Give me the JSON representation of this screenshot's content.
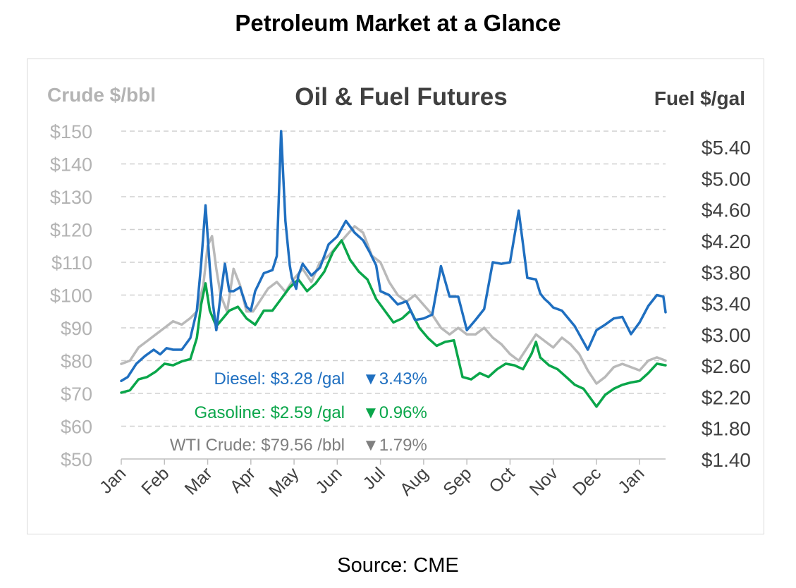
{
  "page": {
    "title": "Petroleum Market at a Glance",
    "source": "Source: CME"
  },
  "chart_data": {
    "type": "line",
    "title": "Oil & Fuel Futures",
    "left_axis_label": "Crude $/bbl",
    "right_axis_label": "Fuel $/gal",
    "left_ticks": [
      "$150",
      "$140",
      "$130",
      "$120",
      "$110",
      "$100",
      "$90",
      "$80",
      "$70",
      "$60",
      "$50"
    ],
    "right_ticks": [
      "$5.40",
      "$5.00",
      "$4.60",
      "$4.20",
      "$3.80",
      "$3.40",
      "$3.00",
      "$2.60",
      "$2.20",
      "$1.80",
      "$1.40"
    ],
    "left_ylim": [
      50,
      150
    ],
    "right_ylim": [
      1.4,
      5.6
    ],
    "xlim": [
      0,
      12.6
    ],
    "categories": [
      "Jan",
      "Feb",
      "Mar",
      "Apr",
      "May",
      "Jun",
      "Jul",
      "Aug",
      "Sep",
      "Oct",
      "Nov",
      "Dec",
      "Jan"
    ],
    "grid": "horizontal dashed",
    "colors": {
      "diesel": "#1f6fc0",
      "gasoline": "#0aa64a",
      "crude": "#b9b9b9"
    },
    "annotations": [
      {
        "name": "Diesel:",
        "price": "$3.28 /gal",
        "change": "3.43%",
        "arrow": "▼",
        "color": "#1f6fc0"
      },
      {
        "name": "Gasoline:",
        "price": "$2.59 /gal",
        "change": "0.96%",
        "arrow": "▼",
        "color": "#0aa64a"
      },
      {
        "name": "WTI Crude:",
        "price": "$79.56 /bbl",
        "change": "1.79%",
        "arrow": "▼",
        "color": "#7f7f7f"
      }
    ],
    "series": [
      {
        "name": "Diesel",
        "axis": "right",
        "color": "#1f6fc0",
        "x": [
          0.0,
          0.15,
          0.35,
          0.55,
          0.75,
          0.9,
          1.05,
          1.2,
          1.4,
          1.6,
          1.75,
          1.85,
          1.95,
          2.05,
          2.12,
          2.2,
          2.3,
          2.4,
          2.5,
          2.6,
          2.75,
          2.9,
          3.0,
          3.1,
          3.3,
          3.5,
          3.6,
          3.7,
          3.8,
          3.9,
          3.95,
          4.0,
          4.05,
          4.1,
          4.2,
          4.4,
          4.6,
          4.8,
          5.0,
          5.2,
          5.4,
          5.6,
          5.75,
          5.9,
          6.0,
          6.2,
          6.4,
          6.6,
          6.8,
          7.0,
          7.2,
          7.4,
          7.6,
          7.8,
          8.0,
          8.2,
          8.4,
          8.6,
          8.8,
          9.0,
          9.2,
          9.4,
          9.6,
          9.7,
          9.8,
          9.9,
          10.0,
          10.2,
          10.5,
          10.8,
          11.0,
          11.2,
          11.4,
          11.6,
          11.8,
          12.0,
          12.2,
          12.4,
          12.55,
          12.6
        ],
        "values": [
          2.4,
          2.45,
          2.62,
          2.72,
          2.8,
          2.74,
          2.82,
          2.8,
          2.8,
          2.95,
          3.3,
          3.9,
          4.65,
          3.85,
          3.4,
          3.05,
          3.5,
          3.9,
          3.55,
          3.55,
          3.6,
          3.35,
          3.3,
          3.55,
          3.78,
          3.82,
          4.0,
          5.6,
          4.45,
          3.88,
          3.72,
          3.65,
          3.58,
          3.75,
          3.9,
          3.75,
          3.85,
          4.15,
          4.25,
          4.45,
          4.3,
          4.2,
          4.05,
          3.88,
          3.55,
          3.5,
          3.38,
          3.42,
          3.18,
          3.2,
          3.25,
          3.87,
          3.48,
          3.48,
          3.05,
          3.18,
          3.32,
          3.92,
          3.9,
          3.92,
          4.58,
          3.72,
          3.7,
          3.52,
          3.45,
          3.4,
          3.34,
          3.3,
          3.1,
          2.8,
          3.05,
          3.12,
          3.2,
          3.22,
          3.0,
          3.15,
          3.36,
          3.5,
          3.48,
          3.28
        ]
      },
      {
        "name": "Gasoline",
        "axis": "right",
        "color": "#0aa64a",
        "x": [
          0.0,
          0.2,
          0.4,
          0.6,
          0.8,
          1.0,
          1.2,
          1.4,
          1.6,
          1.75,
          1.85,
          1.95,
          2.05,
          2.2,
          2.35,
          2.5,
          2.7,
          2.9,
          3.1,
          3.3,
          3.5,
          3.7,
          3.9,
          4.1,
          4.3,
          4.5,
          4.7,
          4.9,
          5.1,
          5.3,
          5.5,
          5.7,
          5.9,
          6.1,
          6.3,
          6.5,
          6.7,
          6.9,
          7.1,
          7.3,
          7.5,
          7.7,
          7.9,
          8.1,
          8.3,
          8.5,
          8.7,
          8.9,
          9.1,
          9.3,
          9.5,
          9.6,
          9.7,
          9.9,
          10.1,
          10.3,
          10.5,
          10.7,
          10.9,
          11.0,
          11.2,
          11.4,
          11.6,
          11.8,
          12.0,
          12.2,
          12.4,
          12.6
        ],
        "values": [
          2.25,
          2.28,
          2.42,
          2.45,
          2.52,
          2.62,
          2.6,
          2.65,
          2.68,
          2.95,
          3.38,
          3.65,
          3.3,
          3.1,
          3.2,
          3.3,
          3.35,
          3.2,
          3.12,
          3.3,
          3.3,
          3.45,
          3.6,
          3.7,
          3.55,
          3.65,
          3.8,
          4.05,
          4.2,
          3.95,
          3.8,
          3.7,
          3.45,
          3.3,
          3.15,
          3.2,
          3.3,
          3.08,
          2.95,
          2.85,
          2.9,
          2.92,
          2.45,
          2.42,
          2.5,
          2.45,
          2.55,
          2.62,
          2.6,
          2.55,
          2.75,
          2.9,
          2.7,
          2.6,
          2.55,
          2.45,
          2.35,
          2.3,
          2.15,
          2.07,
          2.22,
          2.3,
          2.35,
          2.38,
          2.4,
          2.5,
          2.62,
          2.6
        ]
      },
      {
        "name": "WTI Crude",
        "axis": "left",
        "color": "#b9b9b9",
        "x": [
          0.0,
          0.2,
          0.4,
          0.6,
          0.8,
          1.0,
          1.2,
          1.4,
          1.6,
          1.75,
          1.9,
          2.0,
          2.1,
          2.2,
          2.3,
          2.45,
          2.6,
          2.75,
          2.9,
          3.05,
          3.2,
          3.4,
          3.6,
          3.8,
          4.0,
          4.2,
          4.4,
          4.6,
          4.8,
          5.0,
          5.2,
          5.4,
          5.6,
          5.8,
          6.0,
          6.2,
          6.4,
          6.6,
          6.8,
          7.0,
          7.2,
          7.4,
          7.6,
          7.8,
          8.0,
          8.2,
          8.4,
          8.6,
          8.8,
          9.0,
          9.2,
          9.4,
          9.6,
          9.8,
          10.0,
          10.2,
          10.4,
          10.6,
          10.8,
          11.0,
          11.2,
          11.4,
          11.6,
          11.8,
          12.0,
          12.2,
          12.4,
          12.6
        ],
        "values": [
          79,
          80,
          84,
          86,
          88,
          90,
          92,
          91,
          93,
          95,
          103,
          115,
          118,
          108,
          100,
          95,
          108,
          103,
          95,
          95,
          98,
          102,
          104,
          101,
          105,
          108,
          104,
          110,
          112,
          115,
          118,
          121,
          119,
          112,
          110,
          104,
          100,
          98,
          100,
          97,
          94,
          90,
          88,
          90,
          88,
          88,
          90,
          87,
          85,
          82,
          80,
          84,
          88,
          86,
          84,
          87,
          85,
          82,
          77,
          73,
          75,
          78,
          79,
          78,
          77,
          80,
          81,
          80
        ]
      }
    ]
  }
}
